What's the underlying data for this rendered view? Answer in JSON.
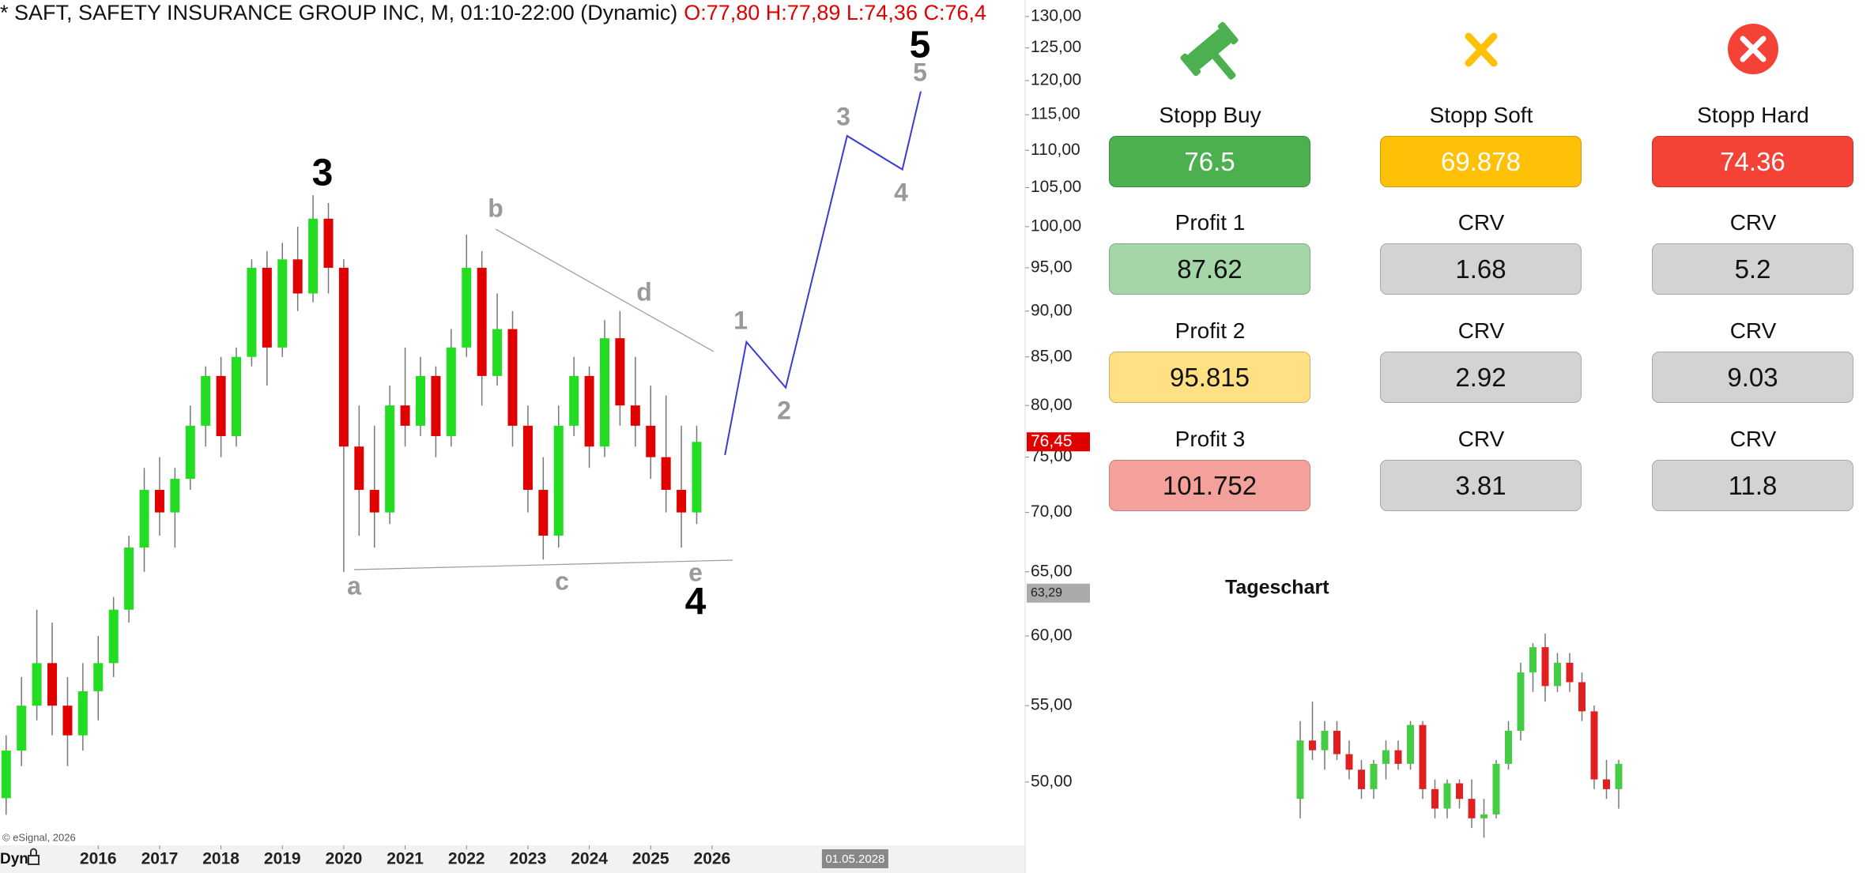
{
  "chart_data": [
    {
      "type": "candlestick",
      "title": "* SAFT, SAFETY INSURANCE GROUP INC, M, 01:10-22:00 (Dynamic)",
      "subtitle": "O:77,80 H:77,89 L:74,36 C:76,4",
      "x": [
        2014.5,
        2014.75,
        2015,
        2015.25,
        2015.5,
        2015.75,
        2016,
        2016.25,
        2016.5,
        2016.75,
        2017,
        2017.25,
        2017.5,
        2017.75,
        2018,
        2018.25,
        2018.5,
        2018.75,
        2019,
        2019.25,
        2019.5,
        2019.75,
        2020,
        2020.25,
        2020.5,
        2020.75,
        2021,
        2021.25,
        2021.5,
        2021.75,
        2022,
        2022.25,
        2022.5,
        2022.75,
        2023,
        2023.25,
        2023.5,
        2023.75,
        2024,
        2024.25,
        2024.5,
        2024.75,
        2025,
        2025.25,
        2025.5,
        2025.75
      ],
      "open": [
        49,
        52,
        55,
        58,
        55,
        53,
        56,
        58,
        62,
        67,
        72,
        70,
        73,
        78,
        83,
        77,
        85,
        95,
        86,
        96,
        92,
        101,
        95,
        76,
        72,
        70,
        80,
        78,
        83,
        77,
        86,
        95,
        83,
        88,
        78,
        72,
        68,
        78,
        83,
        76,
        87,
        80,
        78,
        75,
        72,
        70
      ],
      "high": [
        53,
        57,
        62,
        61,
        57,
        58,
        60,
        63,
        68,
        74,
        75,
        74,
        80,
        84,
        85,
        86,
        96,
        97,
        98,
        100,
        104,
        103,
        96,
        80,
        78,
        82,
        86,
        85,
        84,
        88,
        99,
        97,
        92,
        90,
        80,
        75,
        80,
        85,
        84,
        89,
        90,
        85,
        82,
        81,
        78,
        78
      ],
      "low": [
        48,
        51,
        54,
        53,
        51,
        52,
        54,
        57,
        61,
        65,
        68,
        67,
        72,
        76,
        75,
        76,
        84,
        82,
        85,
        90,
        91,
        92,
        65,
        68,
        67,
        69,
        76,
        77,
        75,
        76,
        85,
        80,
        82,
        76,
        70,
        66,
        67,
        77,
        74,
        75,
        78,
        76,
        73,
        70,
        67,
        69
      ],
      "close": [
        52,
        55,
        58,
        55,
        53,
        56,
        58,
        62,
        67,
        72,
        70,
        73,
        78,
        83,
        77,
        85,
        95,
        86,
        96,
        92,
        101,
        95,
        76,
        72,
        70,
        80,
        78,
        83,
        77,
        86,
        95,
        83,
        88,
        78,
        72,
        68,
        78,
        83,
        76,
        87,
        80,
        78,
        75,
        72,
        70,
        76.45
      ],
      "up_color": "#22dd22",
      "down_color": "#e00000",
      "log_scale": true,
      "xlim": [
        2014.4,
        2031.1
      ],
      "xticks": [
        2016,
        2017,
        2018,
        2019,
        2020,
        2021,
        2022,
        2023,
        2024,
        2025,
        2026
      ],
      "ylim": [
        46.2,
        132.7
      ],
      "yticks": [
        {
          "value": 50,
          "label": "50,00"
        },
        {
          "value": 55,
          "label": "55,00"
        },
        {
          "value": 60,
          "label": "60,00"
        },
        {
          "value": 65,
          "label": "65,00"
        },
        {
          "value": 70,
          "label": "70,00"
        },
        {
          "value": 75,
          "label": "75,00"
        },
        {
          "value": 80,
          "label": "80,00"
        },
        {
          "value": 85,
          "label": "85,00"
        },
        {
          "value": 90,
          "label": "90,00"
        },
        {
          "value": 95,
          "label": "95,00"
        },
        {
          "value": 100,
          "label": "100,00"
        },
        {
          "value": 105,
          "label": "105,00"
        },
        {
          "value": 110,
          "label": "110,00"
        },
        {
          "value": 115,
          "label": "115,00"
        },
        {
          "value": 120,
          "label": "120,00"
        },
        {
          "value": 125,
          "label": "125,00"
        },
        {
          "value": 130,
          "label": "130,00"
        }
      ],
      "last_price": {
        "value": 76.45,
        "label": "76,45"
      },
      "marker_price": {
        "value": 63.29,
        "label": "63,29"
      },
      "cursor_date": {
        "value": 2028.33,
        "label": "01.05.2028"
      },
      "projection": {
        "color": "#3a3ad6",
        "x": [
          2026.21,
          2026.56,
          2027.2,
          2028.2,
          2029.1,
          2029.4
        ],
        "values": [
          75.2,
          86.6,
          81.8,
          112,
          107.4,
          118.4
        ]
      },
      "wave_labels": [
        "3",
        "5",
        "4",
        "a",
        "b",
        "c",
        "d",
        "e",
        "1",
        "2",
        "3",
        "4",
        "5"
      ],
      "copyright": "© eSignal, 2026",
      "mode": "Dyn"
    },
    {
      "type": "candlestick",
      "title": "Tageschart",
      "categories": [
        null,
        null,
        null,
        null,
        null,
        null,
        null,
        null,
        null,
        null,
        null,
        null,
        null,
        null,
        null,
        null,
        null,
        null,
        null,
        null,
        null,
        null,
        null,
        null,
        null,
        null,
        null
      ],
      "open": [
        72,
        75,
        74.5,
        75.5,
        74.3,
        73.5,
        72.5,
        73.8,
        74.5,
        73.8,
        75.8,
        72.5,
        71.5,
        72.8,
        72,
        71,
        71.2,
        73.8,
        75.5,
        78.5,
        79.8,
        77.8,
        79,
        78,
        76.5,
        73,
        72.5
      ],
      "high": [
        76,
        77,
        76,
        76,
        75,
        74,
        74,
        75,
        75,
        76,
        76,
        73,
        73,
        73,
        73,
        72,
        74,
        76,
        79,
        80,
        80.5,
        79.5,
        79.5,
        78.5,
        76.8,
        74,
        74
      ],
      "low": [
        71,
        74,
        73.5,
        74,
        73,
        72,
        72,
        73,
        73.5,
        73.5,
        72,
        71,
        71,
        71.5,
        70.5,
        70,
        71,
        73.5,
        75,
        77.5,
        77,
        77.5,
        77.5,
        76,
        72.5,
        72,
        71.5
      ],
      "close": [
        75,
        74.5,
        75.5,
        74.3,
        73.5,
        72.5,
        73.8,
        74.5,
        73.8,
        75.8,
        72.5,
        71.5,
        72.8,
        72,
        71,
        71.2,
        73.8,
        75.5,
        78.5,
        79.8,
        77.8,
        79,
        78,
        76.5,
        73,
        72.5,
        73.8
      ],
      "up_color": "#44cc44",
      "down_color": "#e02020",
      "ylim": [
        69,
        82
      ]
    }
  ],
  "panel": {
    "stops": [
      {
        "label": "Stopp Buy",
        "value": 76.5
      },
      {
        "label": "Stopp Soft",
        "value": 69.878
      },
      {
        "label": "Stopp Hard",
        "value": 74.36
      }
    ],
    "rows": [
      {
        "label": "Profit 1",
        "value": 87.62,
        "crv": [
          {
            "label": "CRV",
            "value": 1.68
          },
          {
            "label": "CRV",
            "value": 5.2
          }
        ]
      },
      {
        "label": "Profit 2",
        "value": 95.815,
        "crv": [
          {
            "label": "CRV",
            "value": 2.92
          },
          {
            "label": "CRV",
            "value": 9.03
          }
        ]
      },
      {
        "label": "Profit 3",
        "value": 101.752,
        "crv": [
          {
            "label": "CRV",
            "value": 3.81
          },
          {
            "label": "CRV",
            "value": 11.8
          }
        ]
      }
    ]
  }
}
